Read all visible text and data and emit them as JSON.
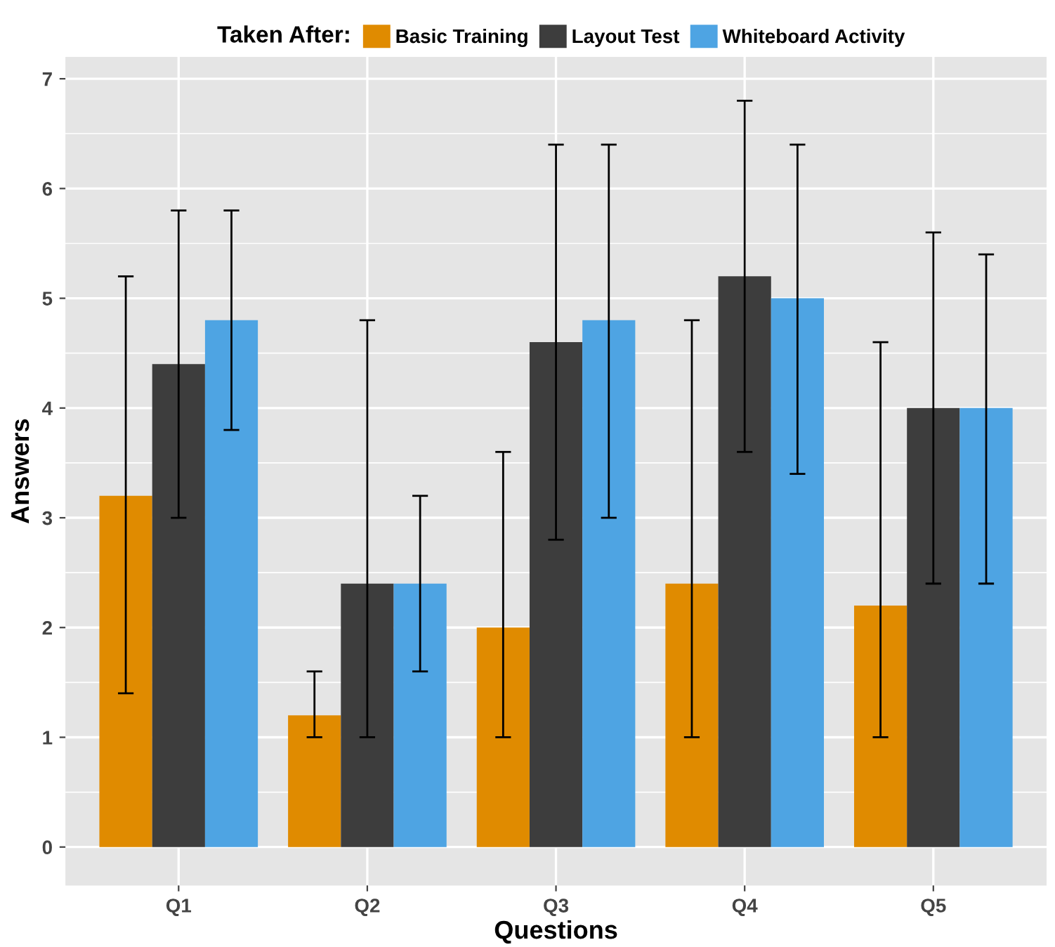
{
  "chart_data": {
    "type": "bar",
    "xlabel": "Questions",
    "ylabel": "Answers",
    "legend_title": "Taken After:",
    "legend": "top",
    "categories": [
      "Q1",
      "Q2",
      "Q3",
      "Q4",
      "Q5"
    ],
    "series": [
      {
        "name": "Basic Training",
        "color": "#e08b00",
        "values": [
          3.2,
          1.2,
          2.0,
          2.4,
          2.2
        ],
        "errors": [
          [
            1.4,
            5.2
          ],
          [
            1.0,
            1.6
          ],
          [
            1.0,
            3.6
          ],
          [
            1.0,
            4.8
          ],
          [
            1.0,
            4.6
          ]
        ]
      },
      {
        "name": "Layout Test",
        "color": "#3d3d3d",
        "values": [
          4.4,
          2.4,
          4.6,
          5.2,
          4.0
        ],
        "errors": [
          [
            3.0,
            5.8
          ],
          [
            1.0,
            4.8
          ],
          [
            2.8,
            6.4
          ],
          [
            3.6,
            6.8
          ],
          [
            2.4,
            5.6
          ]
        ]
      },
      {
        "name": "Whiteboard Activity",
        "color": "#4ea4e3",
        "values": [
          4.8,
          2.4,
          4.8,
          5.0,
          4.0
        ],
        "errors": [
          [
            3.8,
            5.8
          ],
          [
            1.6,
            3.2
          ],
          [
            3.0,
            6.4
          ],
          [
            3.4,
            6.4
          ],
          [
            2.4,
            5.4
          ]
        ]
      }
    ],
    "ylim": [
      -0.35,
      7.2
    ],
    "yticks": [
      0,
      1,
      2,
      3,
      4,
      5,
      6,
      7
    ],
    "grid": true
  }
}
